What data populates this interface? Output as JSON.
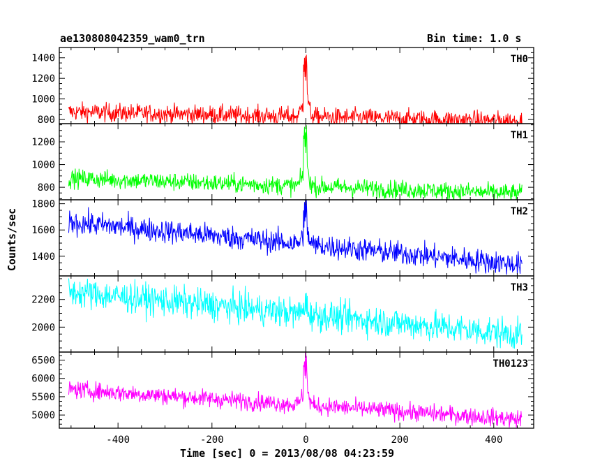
{
  "header": {
    "left_title": "ae130808042359_wam0_trn",
    "right_title": "Bin time: 1.0 s"
  },
  "chart_data": {
    "type": "line",
    "title": "ae130808042359_wam0_trn",
    "subtitle": "Bin time: 1.0 s",
    "xlabel": "Time [sec] 0 = 2013/08/08 04:23:59",
    "ylabel": "Counts/sec",
    "xlim": [
      -525,
      485
    ],
    "x_ticks": [
      -400,
      -200,
      0,
      200,
      400
    ],
    "x_range": [
      -505,
      460
    ],
    "panels": [
      {
        "name": "TH0",
        "color": "#ff0000",
        "ylim": [
          760,
          1500
        ],
        "y_ticks": [
          800,
          1000,
          1200,
          1400
        ],
        "baseline_start": 875,
        "baseline_end": 785,
        "noise": 45,
        "burst_peak": 1460
      },
      {
        "name": "TH1",
        "color": "#00ff00",
        "ylim": [
          690,
          1360
        ],
        "y_ticks": [
          800,
          1000,
          1200
        ],
        "baseline_start": 880,
        "baseline_end": 745,
        "noise": 40,
        "burst_peak": 1330
      },
      {
        "name": "TH2",
        "color": "#0000ff",
        "ylim": [
          1250,
          1830
        ],
        "y_ticks": [
          1400,
          1600,
          1800
        ],
        "baseline_start": 1660,
        "baseline_end": 1335,
        "noise": 45,
        "burst_peak": 1780
      },
      {
        "name": "TH3",
        "color": "#00ffff",
        "ylim": [
          1820,
          2370
        ],
        "y_ticks": [
          2000,
          2200
        ],
        "baseline_start": 2255,
        "baseline_end": 1945,
        "noise": 55,
        "burst_peak": 2180
      },
      {
        "name": "TH0123",
        "color": "#ff00ff",
        "ylim": [
          4640,
          6720
        ],
        "y_ticks": [
          5000,
          5500,
          6000,
          6500
        ],
        "baseline_start": 5700,
        "baseline_end": 4880,
        "noise": 120,
        "burst_peak": 6650
      }
    ]
  }
}
